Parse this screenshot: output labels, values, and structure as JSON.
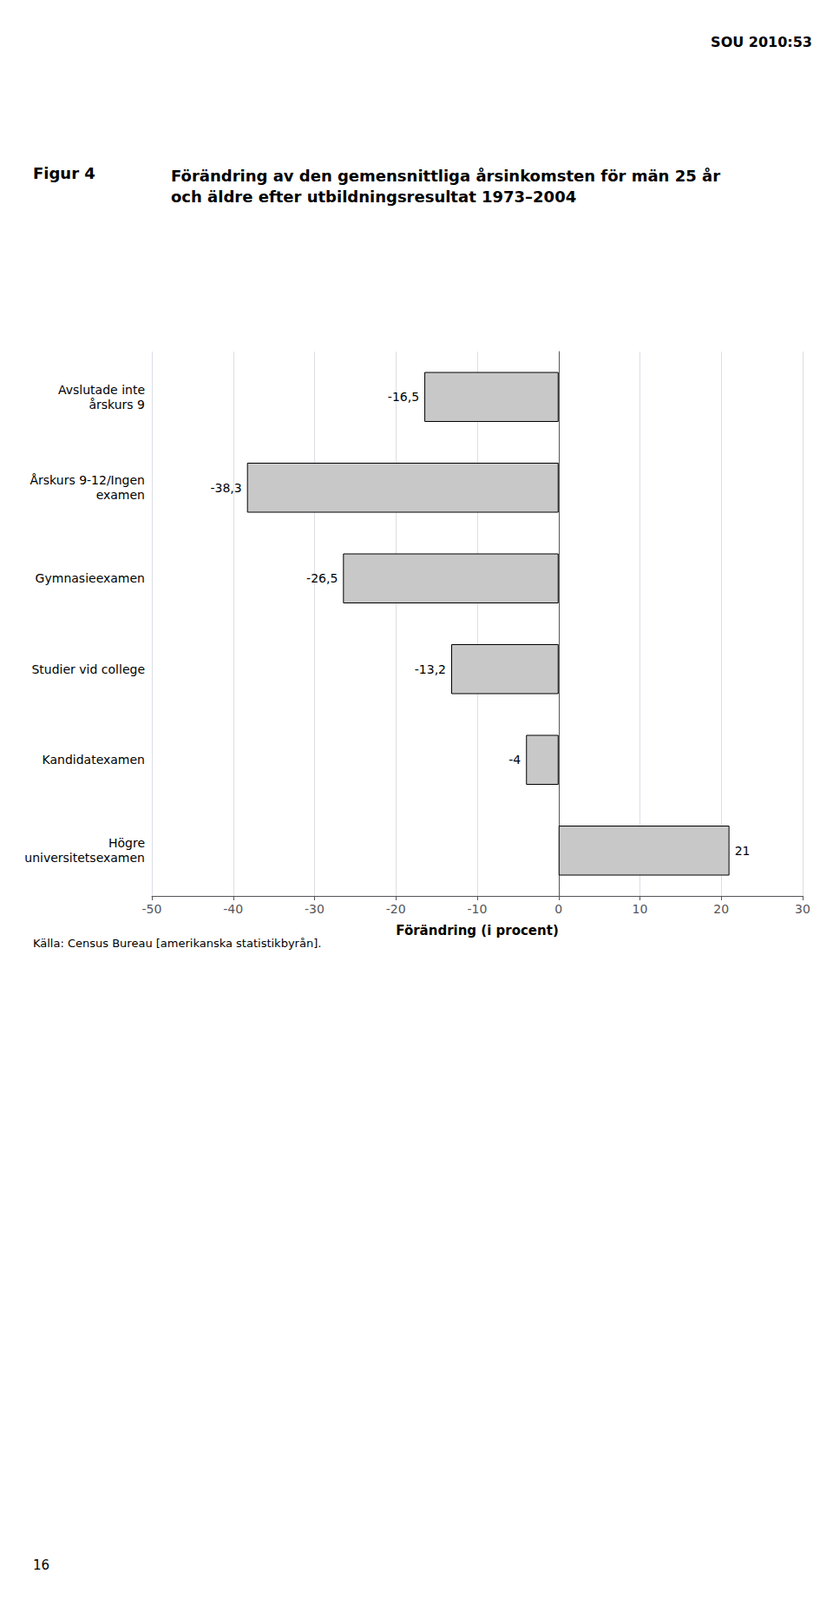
{
  "chart_data": {
    "type": "bar",
    "orientation": "horizontal",
    "title": "Förändring av den gemensnittliga årsinkomsten för män 25 år\noch äldre efter utbildningsresultat 1973–2004",
    "annotations": [
      "SOU 2010:53",
      "Figur 4",
      "Källa: Census Bureau [amerikanska statistikbyrån].",
      "16"
    ],
    "categories": [
      "Avslutade inte\nårskurs 9",
      "Årskurs 9-12/Ingen\nexamen",
      "Gymnasieexamen",
      "Studier vid college",
      "Kandidatexamen",
      "Högre\nuniversitetsexamen"
    ],
    "values": [
      -16.5,
      -38.3,
      -26.5,
      -13.2,
      -4,
      21
    ],
    "value_labels": [
      "-16,5",
      "-38,3",
      "-26,5",
      "-13,2",
      "-4",
      "21"
    ],
    "data_labels": true,
    "color": "#c8c8c8",
    "xlabel": "Förändring (i procent)",
    "xlim": [
      -50,
      30
    ],
    "xticks": [
      -50,
      -40,
      -30,
      -20,
      -10,
      0,
      10,
      20,
      30
    ],
    "grid": true
  }
}
